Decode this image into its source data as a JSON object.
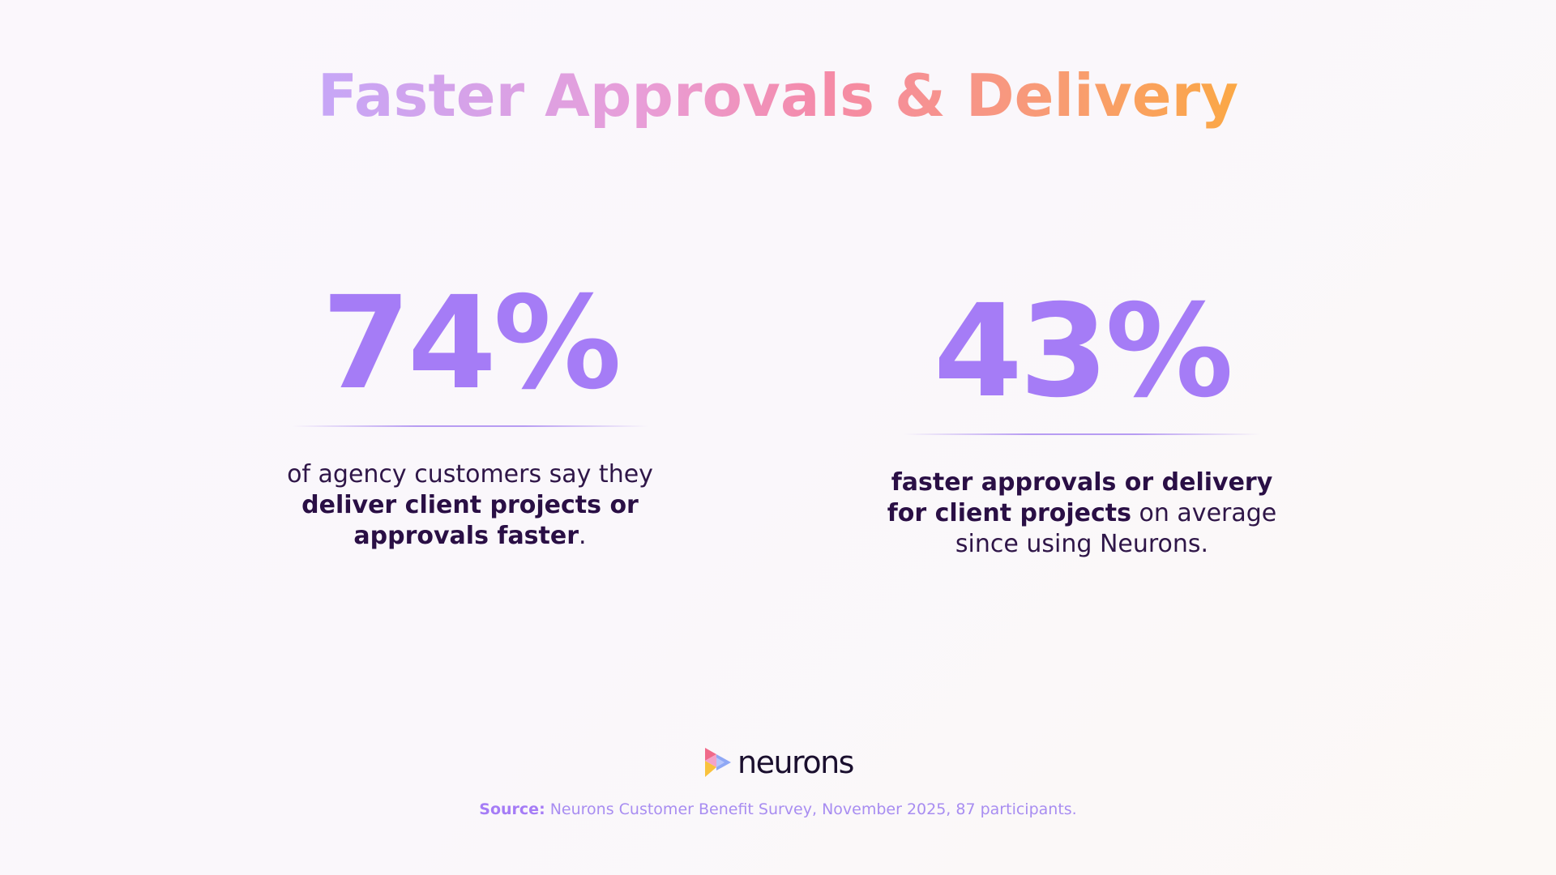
{
  "title": "Faster Approvals & Delivery",
  "stats": [
    {
      "value": "74%",
      "desc_pre": "of agency customers say they",
      "desc_bold": "deliver client projects or approvals faster",
      "desc_post": "."
    },
    {
      "value": "43%",
      "desc_bold": "faster approvals or delivery for client projects",
      "desc_post": " on average since using Neurons."
    }
  ],
  "logo": {
    "text": "neurons",
    "icon": "neurons-play-logo-icon"
  },
  "source": {
    "label": "Source:",
    "text": " Neurons Customer Benefit Survey, November 2025, 87 participants."
  },
  "colors": {
    "accent": "#a57cf6",
    "dark_text": "#2a0f45",
    "title_gradient": [
      "#c6a6f7",
      "#e89ed8",
      "#f58aa8",
      "#f89a78",
      "#fba845"
    ]
  }
}
